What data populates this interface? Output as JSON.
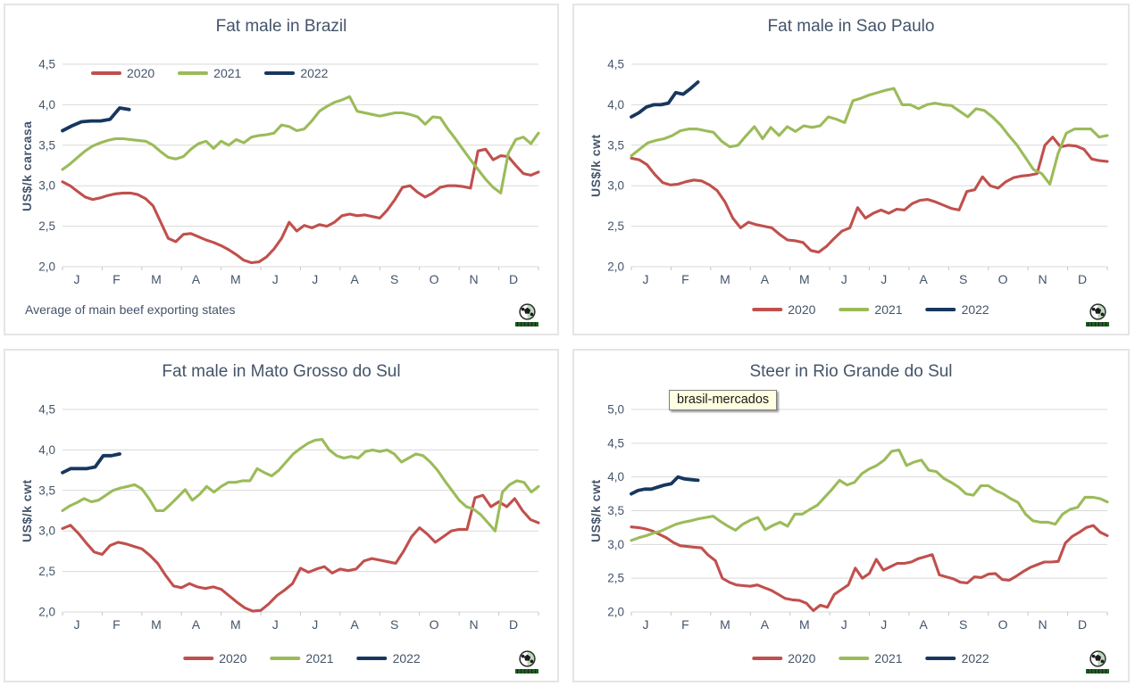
{
  "page": {
    "background": "#FFFFFF"
  },
  "colors": {
    "series_2020": "#C0504D",
    "series_2021": "#9BBB59",
    "series_2022": "#17375E",
    "title_text": "#44546A",
    "gridline": "#D9D9D9",
    "axis_tick": "#C6C6C6",
    "tooltip_bg": "#FFFFE1",
    "tooltip_border": "#7F7F7F"
  },
  "chart_data": [
    {
      "type": "line",
      "title": "Fat male in Brazil",
      "ylabel": "US$/k carcasa",
      "xlabel": "",
      "categories": [
        "J",
        "F",
        "M",
        "A",
        "M",
        "J",
        "J",
        "A",
        "S",
        "O",
        "N",
        "D"
      ],
      "ylim": [
        2.0,
        4.5
      ],
      "y_tick_labels": [
        "4,5",
        "4,0",
        "3,5",
        "3,0",
        "2,5",
        "2,0"
      ],
      "grid": "horizontal",
      "legend_position": "top-left-inside",
      "footnote": "Average of main beef exporting states",
      "series": [
        {
          "name": "2020",
          "color": "#C0504D",
          "span": 1.0,
          "values": [
            3.05,
            3.0,
            2.93,
            2.86,
            2.83,
            2.85,
            2.88,
            2.9,
            2.91,
            2.91,
            2.89,
            2.84,
            2.75,
            2.55,
            2.35,
            2.31,
            2.4,
            2.41,
            2.37,
            2.33,
            2.3,
            2.26,
            2.21,
            2.15,
            2.08,
            2.05,
            2.06,
            2.12,
            2.22,
            2.35,
            2.55,
            2.44,
            2.51,
            2.48,
            2.52,
            2.5,
            2.55,
            2.63,
            2.65,
            2.63,
            2.64,
            2.62,
            2.6,
            2.7,
            2.83,
            2.98,
            3.0,
            2.92,
            2.86,
            2.91,
            2.98,
            3.0,
            3.0,
            2.99,
            2.97,
            3.43,
            3.45,
            3.32,
            3.37,
            3.36,
            3.25,
            3.15,
            3.13,
            3.17
          ]
        },
        {
          "name": "2021",
          "color": "#9BBB59",
          "span": 1.0,
          "values": [
            3.2,
            3.27,
            3.35,
            3.43,
            3.49,
            3.53,
            3.56,
            3.58,
            3.58,
            3.57,
            3.56,
            3.55,
            3.5,
            3.42,
            3.35,
            3.33,
            3.36,
            3.45,
            3.52,
            3.55,
            3.46,
            3.55,
            3.5,
            3.57,
            3.53,
            3.6,
            3.62,
            3.63,
            3.65,
            3.75,
            3.73,
            3.68,
            3.7,
            3.8,
            3.92,
            3.98,
            4.03,
            4.06,
            4.1,
            3.92,
            3.9,
            3.88,
            3.86,
            3.88,
            3.9,
            3.9,
            3.88,
            3.85,
            3.76,
            3.85,
            3.84,
            3.7,
            3.58,
            3.45,
            3.32,
            3.2,
            3.08,
            2.98,
            2.91,
            3.4,
            3.57,
            3.6,
            3.52,
            3.65
          ]
        },
        {
          "name": "2022",
          "color": "#17375E",
          "span": 0.14,
          "values": [
            3.68,
            3.74,
            3.79,
            3.8,
            3.8,
            3.82,
            3.96,
            3.94
          ]
        }
      ]
    },
    {
      "type": "line",
      "title": "Fat male in Sao Paulo",
      "ylabel": "US$/k cwt",
      "xlabel": "",
      "categories": [
        "J",
        "F",
        "M",
        "A",
        "M",
        "J",
        "J",
        "A",
        "S",
        "O",
        "N",
        "D"
      ],
      "ylim": [
        2.0,
        4.5
      ],
      "y_tick_labels": [
        "4,5",
        "4,0",
        "3,5",
        "3,0",
        "2,5",
        "2,0"
      ],
      "grid": "horizontal",
      "legend_position": "bottom-center",
      "footnote": "",
      "series": [
        {
          "name": "2020",
          "color": "#C0504D",
          "span": 1.0,
          "values": [
            3.34,
            3.32,
            3.26,
            3.14,
            3.04,
            3.01,
            3.02,
            3.05,
            3.07,
            3.06,
            3.01,
            2.94,
            2.8,
            2.6,
            2.48,
            2.55,
            2.52,
            2.5,
            2.48,
            2.4,
            2.33,
            2.32,
            2.3,
            2.2,
            2.18,
            2.25,
            2.35,
            2.44,
            2.48,
            2.73,
            2.6,
            2.66,
            2.7,
            2.66,
            2.71,
            2.7,
            2.78,
            2.82,
            2.83,
            2.8,
            2.76,
            2.72,
            2.7,
            2.93,
            2.95,
            3.11,
            3.0,
            2.97,
            3.05,
            3.1,
            3.12,
            3.13,
            3.15,
            3.5,
            3.6,
            3.48,
            3.5,
            3.49,
            3.45,
            3.33,
            3.31,
            3.3
          ]
        },
        {
          "name": "2021",
          "color": "#9BBB59",
          "span": 1.0,
          "values": [
            3.37,
            3.45,
            3.53,
            3.56,
            3.58,
            3.62,
            3.68,
            3.7,
            3.7,
            3.68,
            3.66,
            3.55,
            3.48,
            3.5,
            3.62,
            3.73,
            3.58,
            3.72,
            3.62,
            3.73,
            3.67,
            3.74,
            3.72,
            3.74,
            3.85,
            3.82,
            3.78,
            4.05,
            4.08,
            4.12,
            4.15,
            4.18,
            4.2,
            4.0,
            4.0,
            3.95,
            4.0,
            4.02,
            4.0,
            3.99,
            3.92,
            3.85,
            3.95,
            3.93,
            3.85,
            3.75,
            3.62,
            3.5,
            3.35,
            3.2,
            3.15,
            3.02,
            3.4,
            3.65,
            3.7,
            3.7,
            3.7,
            3.6,
            3.62
          ]
        },
        {
          "name": "2022",
          "color": "#17375E",
          "span": 0.14,
          "values": [
            3.85,
            3.9,
            3.97,
            4.0,
            4.0,
            4.02,
            4.15,
            4.13,
            4.2,
            4.28
          ]
        }
      ]
    },
    {
      "type": "line",
      "title": "Fat male in Mato Grosso do Sul",
      "ylabel": "US$/k cwt",
      "xlabel": "",
      "categories": [
        "J",
        "F",
        "M",
        "A",
        "M",
        "J",
        "J",
        "A",
        "S",
        "O",
        "N",
        "D"
      ],
      "ylim": [
        2.0,
        4.5
      ],
      "y_tick_labels": [
        "4,5",
        "4,0",
        "3,5",
        "3,0",
        "2,5",
        "2,0"
      ],
      "grid": "horizontal",
      "legend_position": "bottom-center",
      "footnote": "",
      "series": [
        {
          "name": "2020",
          "color": "#C0504D",
          "span": 1.0,
          "values": [
            3.03,
            3.07,
            2.97,
            2.85,
            2.74,
            2.71,
            2.82,
            2.86,
            2.84,
            2.81,
            2.78,
            2.7,
            2.6,
            2.45,
            2.32,
            2.3,
            2.35,
            2.31,
            2.29,
            2.31,
            2.28,
            2.2,
            2.12,
            2.05,
            2.01,
            2.02,
            2.1,
            2.2,
            2.27,
            2.35,
            2.54,
            2.49,
            2.53,
            2.56,
            2.48,
            2.53,
            2.51,
            2.53,
            2.63,
            2.66,
            2.64,
            2.62,
            2.6,
            2.75,
            2.93,
            3.04,
            2.96,
            2.86,
            2.93,
            3.0,
            3.02,
            3.02,
            3.41,
            3.44,
            3.3,
            3.36,
            3.3,
            3.4,
            3.25,
            3.14,
            3.1
          ]
        },
        {
          "name": "2021",
          "color": "#9BBB59",
          "span": 1.0,
          "values": [
            3.25,
            3.31,
            3.35,
            3.4,
            3.36,
            3.38,
            3.44,
            3.5,
            3.53,
            3.55,
            3.57,
            3.52,
            3.4,
            3.25,
            3.25,
            3.33,
            3.42,
            3.51,
            3.38,
            3.45,
            3.55,
            3.48,
            3.55,
            3.6,
            3.6,
            3.62,
            3.62,
            3.77,
            3.72,
            3.68,
            3.75,
            3.85,
            3.95,
            4.02,
            4.08,
            4.12,
            4.13,
            4.0,
            3.93,
            3.9,
            3.92,
            3.9,
            3.98,
            4.0,
            3.98,
            4.0,
            3.95,
            3.85,
            3.9,
            3.95,
            3.93,
            3.85,
            3.75,
            3.62,
            3.5,
            3.38,
            3.3,
            3.27,
            3.2,
            3.1,
            3.0,
            3.48,
            3.57,
            3.62,
            3.6,
            3.48,
            3.55
          ]
        },
        {
          "name": "2022",
          "color": "#17375E",
          "span": 0.12,
          "values": [
            3.72,
            3.77,
            3.77,
            3.77,
            3.79,
            3.93,
            3.93,
            3.95
          ]
        }
      ]
    },
    {
      "type": "line",
      "title": "Steer in Rio Grande do Sul",
      "ylabel": "US$/k cwt",
      "xlabel": "",
      "categories": [
        "J",
        "F",
        "M",
        "A",
        "M",
        "J",
        "J",
        "A",
        "S",
        "O",
        "N",
        "D"
      ],
      "ylim": [
        2.0,
        5.0
      ],
      "y_tick_labels": [
        "5,0",
        "4,5",
        "4,0",
        "3,5",
        "3,0",
        "2,5",
        "2,0"
      ],
      "grid": "horizontal",
      "legend_position": "bottom-center",
      "footnote": "",
      "tooltip": "brasil-mercados",
      "series": [
        {
          "name": "2020",
          "color": "#C0504D",
          "span": 1.0,
          "values": [
            3.26,
            3.25,
            3.23,
            3.2,
            3.15,
            3.1,
            3.03,
            2.98,
            2.97,
            2.96,
            2.95,
            2.84,
            2.76,
            2.5,
            2.44,
            2.4,
            2.39,
            2.38,
            2.4,
            2.36,
            2.32,
            2.26,
            2.2,
            2.18,
            2.17,
            2.13,
            2.02,
            2.1,
            2.07,
            2.26,
            2.33,
            2.4,
            2.65,
            2.5,
            2.57,
            2.78,
            2.62,
            2.67,
            2.72,
            2.72,
            2.74,
            2.79,
            2.82,
            2.85,
            2.55,
            2.52,
            2.49,
            2.44,
            2.43,
            2.52,
            2.51,
            2.56,
            2.57,
            2.48,
            2.47,
            2.53,
            2.6,
            2.66,
            2.7,
            2.74,
            2.74,
            2.75,
            3.02,
            3.12,
            3.18,
            3.25,
            3.28,
            3.18,
            3.13
          ]
        },
        {
          "name": "2021",
          "color": "#9BBB59",
          "span": 1.0,
          "values": [
            3.06,
            3.1,
            3.13,
            3.17,
            3.2,
            3.25,
            3.3,
            3.33,
            3.35,
            3.38,
            3.4,
            3.42,
            3.34,
            3.27,
            3.21,
            3.3,
            3.36,
            3.4,
            3.22,
            3.28,
            3.33,
            3.27,
            3.45,
            3.45,
            3.52,
            3.58,
            3.7,
            3.82,
            3.95,
            3.88,
            3.92,
            4.05,
            4.12,
            4.17,
            4.25,
            4.38,
            4.4,
            4.17,
            4.22,
            4.25,
            4.1,
            4.08,
            3.98,
            3.92,
            3.85,
            3.75,
            3.73,
            3.87,
            3.87,
            3.8,
            3.75,
            3.68,
            3.62,
            3.45,
            3.35,
            3.33,
            3.33,
            3.3,
            3.45,
            3.52,
            3.55,
            3.7,
            3.7,
            3.68,
            3.63
          ]
        },
        {
          "name": "2022",
          "color": "#17375E",
          "span": 0.14,
          "values": [
            3.75,
            3.8,
            3.82,
            3.82,
            3.85,
            3.88,
            3.9,
            4.0,
            3.97,
            3.96,
            3.95
          ]
        }
      ]
    }
  ]
}
